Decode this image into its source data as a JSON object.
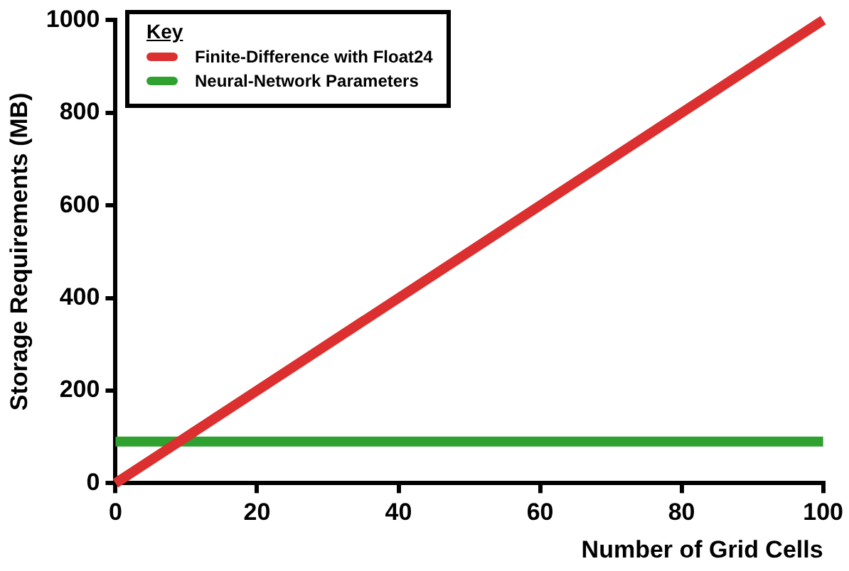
{
  "chart_data": {
    "type": "line",
    "xlabel": "Number of Grid Cells",
    "ylabel": "Storage Requirements (MB)",
    "legend_title": "Key",
    "legend": "top left",
    "grid": false,
    "marker": "none",
    "line_style": "solid",
    "xlim": [
      0,
      100
    ],
    "xticks": [
      0,
      20,
      40,
      60,
      80,
      100
    ],
    "ylim": [
      0,
      1000
    ],
    "yticks": [
      0,
      200,
      400,
      600,
      800,
      1000
    ],
    "x": [
      0,
      100
    ],
    "series": [
      {
        "name": "Finite-Difference with Float24",
        "color": "#dc2f2f",
        "values": [
          0,
          1000
        ]
      },
      {
        "name": "Neural-Network Parameters",
        "color": "#2ea12e",
        "values": [
          90,
          90
        ]
      }
    ]
  }
}
